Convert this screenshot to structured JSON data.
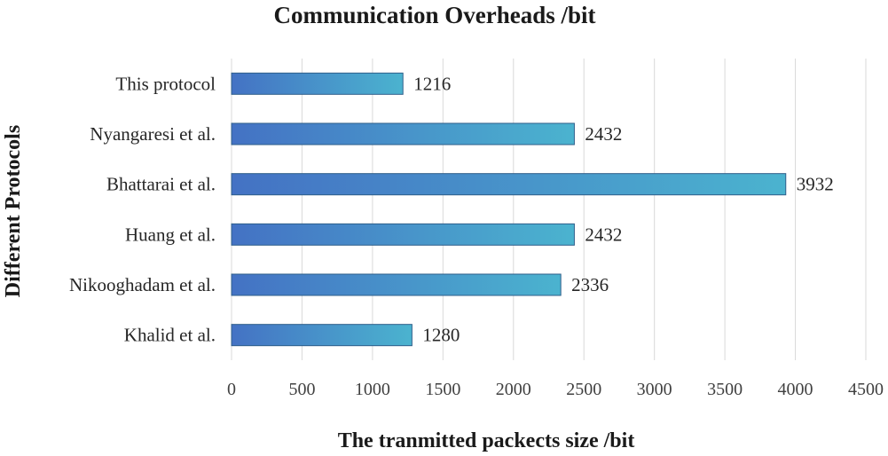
{
  "chart_data": {
    "type": "bar",
    "orientation": "horizontal",
    "title": "Communication Overheads /bit",
    "xlabel": "The tranmitted packects size /bit",
    "ylabel": "Different Protocols",
    "categories": [
      "This protocol",
      "Nyangaresi et al.",
      "Bhattarai et al.",
      "Huang et al.",
      "Nikooghadam et al.",
      "Khalid et al."
    ],
    "values": [
      1216,
      2432,
      3932,
      2432,
      2336,
      1280
    ],
    "xlim": [
      0,
      4500
    ],
    "xticks": [
      0,
      500,
      1000,
      1500,
      2000,
      2500,
      3000,
      3500,
      4000,
      4500
    ],
    "grid": "vertical",
    "data_labels": true,
    "bar_gradient": [
      "#4472c4",
      "#4bb3cf"
    ]
  }
}
